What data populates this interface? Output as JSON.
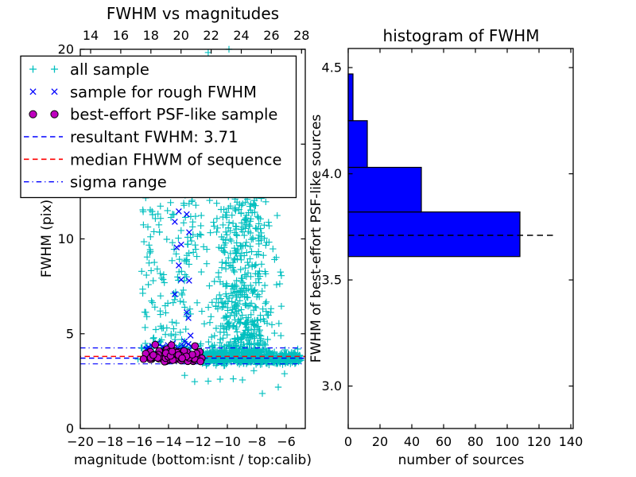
{
  "colors": {
    "cyan": "#00bfbf",
    "blue": "#0000ff",
    "magenta": "#bf00bf",
    "red": "#ff0000",
    "bar_fill": "#0000ff",
    "axis": "#000000",
    "background": "#ffffff"
  },
  "chart_data": [
    {
      "type": "scatter",
      "title": "FWHM vs magnitudes",
      "xlabel": "magnitude (bottom:isnt / top:calib)",
      "ylabel": "FWHM (pix)",
      "xlim": [
        -20,
        -4.7
      ],
      "ylim": [
        0,
        20
      ],
      "grid": false,
      "x_ticks_bottom": {
        "values": [
          -20,
          -18,
          -16,
          -14,
          -12,
          -10,
          -8,
          -6
        ],
        "labels": [
          "−20",
          "−18",
          "−16",
          "−14",
          "−12",
          "−10",
          "−8",
          "−6"
        ]
      },
      "x_ticks_top": {
        "values": [
          14,
          16,
          18,
          20,
          22,
          24,
          26,
          28
        ],
        "labels": [
          "14",
          "16",
          "18",
          "20",
          "22",
          "24",
          "26",
          "28"
        ]
      },
      "y_ticks": {
        "values": [
          0,
          5,
          10,
          15,
          20
        ],
        "labels": [
          "0",
          "5",
          "10",
          "15",
          "20"
        ]
      },
      "series": [
        {
          "name": "all sample",
          "marker": "plus",
          "color": "#00bfbf",
          "clusters": [
            {
              "n": 150,
              "mag": {
                "dist": "uniform",
                "min": -15.85,
                "max": -11.7
              },
              "fwhm": {
                "dist": "uniform",
                "min": 4.5,
                "max": 12.6
              }
            },
            {
              "n": 560,
              "mag": {
                "dist": "normal",
                "mean": -9.0,
                "sd": 1.05,
                "min": -11.7,
                "max": -5.2
              },
              "fwhm": {
                "dist": "power",
                "min": 3.95,
                "max": 12.9,
                "exp": 1.7
              }
            },
            {
              "n": 620,
              "mag": {
                "dist": "power",
                "min": -11.7,
                "max": -5.0,
                "exp": 1.35
              },
              "fwhm": {
                "dist": "normal",
                "mean": 3.72,
                "sd": 0.16,
                "min": 3.3,
                "max": 4.3
              }
            },
            {
              "n": 60,
              "mag": {
                "dist": "uniform",
                "min": -16.2,
                "max": -11.7
              },
              "fwhm": {
                "dist": "normal",
                "mean": 4.15,
                "sd": 0.3,
                "min": 3.55,
                "max": 4.95
              }
            }
          ],
          "points": [
            [
              -9.89,
              20.0
            ],
            [
              -11.3,
              19.83
            ],
            [
              -12.22,
              2.47
            ],
            [
              -10.49,
              2.6
            ],
            [
              -8.97,
              2.56
            ],
            [
              -6.54,
              2.18
            ],
            [
              -6.11,
              2.89
            ],
            [
              -7.62,
              1.85
            ],
            [
              -11.3,
              2.5
            ],
            [
              -9.6,
              2.62
            ],
            [
              -8.2,
              3.05
            ],
            [
              -12.9,
              2.8
            ]
          ]
        },
        {
          "name": "sample for rough FWHM",
          "marker": "x",
          "color": "#0000ff",
          "clusters": [],
          "points": [
            [
              -13.3,
              11.45
            ],
            [
              -12.76,
              11.3
            ],
            [
              -13.57,
              10.9
            ],
            [
              -12.6,
              10.35
            ],
            [
              -13.14,
              9.7
            ],
            [
              -13.45,
              9.55
            ],
            [
              -13.3,
              8.6
            ],
            [
              -13.14,
              7.85
            ],
            [
              -12.6,
              7.8
            ],
            [
              -13.57,
              7.08
            ],
            [
              -12.76,
              6.12
            ],
            [
              -12.65,
              5.83
            ],
            [
              -12.5,
              4.9
            ],
            [
              -15.35,
              4.28
            ],
            [
              -15.1,
              4.35
            ],
            [
              -14.75,
              4.5
            ],
            [
              -14.4,
              4.3
            ],
            [
              -14.05,
              4.4
            ],
            [
              -13.7,
              4.5
            ],
            [
              -13.35,
              4.25
            ],
            [
              -13.0,
              4.35
            ],
            [
              -12.65,
              4.45
            ],
            [
              -15.5,
              4.2
            ],
            [
              -14.2,
              4.15
            ],
            [
              -12.9,
              4.6
            ],
            [
              -12.4,
              4.3
            ]
          ]
        },
        {
          "name": "best-effort PSF-like sample",
          "marker": "circle",
          "color": "#bf00bf",
          "edge_color": "#000000",
          "clusters": [
            {
              "n": 110,
              "mag": {
                "dist": "normal",
                "mean": -13.6,
                "sd": 1.05,
                "min": -15.8,
                "max": -11.55
              },
              "fwhm": {
                "dist": "normal",
                "mean": 3.78,
                "sd": 0.17,
                "min": 3.5,
                "max": 4.3
              }
            }
          ],
          "points": [
            [
              -14.9,
              4.42
            ],
            [
              -13.8,
              4.4
            ],
            [
              -12.2,
              4.35
            ]
          ]
        }
      ],
      "lines": [
        {
          "name": "resultant FWHM",
          "value": 3.71,
          "color": "#0000ff",
          "style": "dashed"
        },
        {
          "name": "median FWHM of sequence",
          "value": 3.8,
          "color": "#ff0000",
          "style": "dashed"
        },
        {
          "name": "sigma range high",
          "value": 4.25,
          "color": "#0000ff",
          "style": "dashdot"
        },
        {
          "name": "sigma range low",
          "value": 3.41,
          "color": "#0000ff",
          "style": "dashdot"
        }
      ],
      "legend": {
        "items": [
          {
            "label": "all sample",
            "type": "marker",
            "marker": "plus",
            "color": "#00bfbf"
          },
          {
            "label": "sample for rough FWHM",
            "type": "marker",
            "marker": "x",
            "color": "#0000ff"
          },
          {
            "label": "best-effort PSF-like sample",
            "type": "marker",
            "marker": "circle",
            "color": "#bf00bf",
            "edge": "#000000"
          },
          {
            "label": "resultant FWHM: 3.71",
            "type": "line",
            "dash": "dashed",
            "color": "#0000ff"
          },
          {
            "label": "median FHWM of sequence",
            "type": "line",
            "dash": "dashed",
            "color": "#ff0000"
          },
          {
            "label": "sigma range",
            "type": "line",
            "dash": "dashdot",
            "color": "#0000ff"
          }
        ]
      }
    },
    {
      "type": "bar",
      "orientation": "horizontal",
      "title": "histogram of FWHM",
      "xlabel": "number of sources",
      "ylabel": "FWHM of best-effort PSF-like sources",
      "bin_edges": [
        3.61,
        3.82,
        4.03,
        4.25,
        4.47
      ],
      "counts": [
        108,
        46,
        12,
        3
      ],
      "bar_color": "#0000ff",
      "bar_edge_color": "#000000",
      "xlim": [
        0,
        141.5
      ],
      "ylim": [
        2.8,
        4.59
      ],
      "x_ticks": {
        "values": [
          0,
          20,
          40,
          60,
          80,
          100,
          120,
          140
        ],
        "labels": [
          "0",
          "20",
          "40",
          "60",
          "80",
          "100",
          "120",
          "140"
        ]
      },
      "y_ticks": {
        "values": [
          3.0,
          3.5,
          4.0,
          4.5
        ],
        "labels": [
          "3.0",
          "3.5",
          "4.0",
          "4.5"
        ]
      },
      "median_line": {
        "value": 3.71,
        "color": "#000000",
        "style": "dashed",
        "x_extent": 130
      }
    }
  ]
}
